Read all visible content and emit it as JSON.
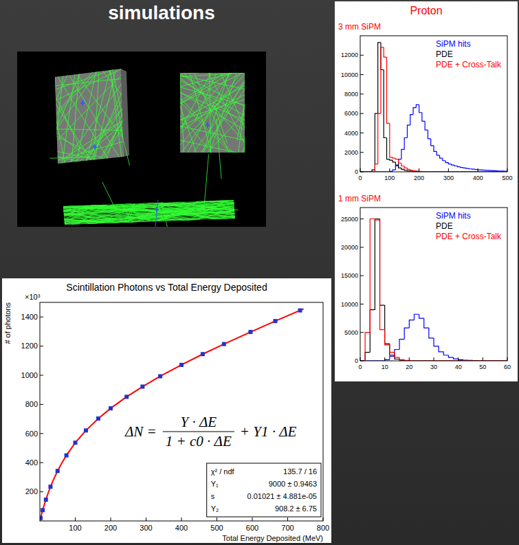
{
  "header": {
    "title": "simulations"
  },
  "panel": {
    "title": "Proton"
  },
  "chart_data": [
    {
      "type": "histogram",
      "title": "3 mm SiPM",
      "bins": [
        0,
        10,
        20,
        30,
        40,
        50,
        60,
        70,
        80,
        90,
        100,
        110,
        120,
        130,
        140,
        150,
        160,
        170,
        180,
        190,
        200,
        210,
        220,
        230,
        240,
        250,
        260,
        270,
        280,
        290,
        300,
        310,
        320,
        330,
        340,
        350,
        360,
        370,
        380,
        390,
        400,
        410,
        420,
        430,
        440,
        450,
        460,
        470,
        480,
        490,
        500
      ],
      "series": [
        {
          "name": "SiPM hits",
          "color": "#0000ff",
          "values": [
            0,
            0,
            0,
            0,
            0,
            0,
            0,
            0,
            0,
            0,
            50,
            200,
            600,
            1300,
            2300,
            3500,
            4800,
            5900,
            6600,
            6900,
            6100,
            5200,
            4300,
            3400,
            2700,
            2100,
            1700,
            1400,
            1150,
            950,
            800,
            700,
            600,
            520,
            450,
            400,
            350,
            300,
            270,
            240,
            210,
            190,
            170,
            150,
            130,
            120,
            100,
            90,
            80,
            70
          ]
        },
        {
          "name": "PDE",
          "color": "#000000",
          "values": [
            0,
            0,
            0,
            0,
            200,
            6000,
            13300,
            10500,
            3500,
            1300,
            1200,
            1000,
            700,
            400,
            250,
            150,
            100,
            80,
            60,
            40,
            30,
            20,
            10,
            0,
            0,
            0,
            0,
            0,
            0,
            0,
            0,
            0,
            0,
            0,
            0,
            0,
            0,
            0,
            0,
            0,
            0,
            0,
            0,
            0,
            0,
            0,
            0,
            0,
            0,
            0
          ]
        },
        {
          "name": "PDE + Cross-Talk",
          "color": "#ff0000",
          "values": [
            0,
            0,
            0,
            0,
            0,
            800,
            6000,
            12800,
            11800,
            5000,
            1500,
            1400,
            1300,
            900,
            600,
            400,
            250,
            150,
            100,
            70,
            50,
            30,
            20,
            10,
            0,
            0,
            0,
            0,
            0,
            0,
            0,
            0,
            0,
            0,
            0,
            0,
            0,
            0,
            0,
            0,
            0,
            0,
            0,
            0,
            0,
            0,
            0,
            0,
            0,
            0
          ]
        }
      ],
      "xlim": [
        0,
        500
      ],
      "ylim": [
        0,
        14000
      ],
      "xticks": [
        0,
        100,
        200,
        300,
        400,
        500
      ],
      "yticks": [
        0,
        2000,
        4000,
        6000,
        8000,
        10000,
        12000
      ],
      "legend": "upper right"
    },
    {
      "type": "histogram",
      "title": "1 mm SiPM",
      "bins": [
        0,
        2,
        4,
        6,
        8,
        10,
        12,
        14,
        16,
        18,
        20,
        22,
        24,
        26,
        28,
        30,
        32,
        34,
        36,
        38,
        40,
        42,
        44,
        46,
        48,
        50,
        52,
        54,
        56,
        58,
        60
      ],
      "series": [
        {
          "name": "SiPM hits",
          "color": "#0000ff",
          "values": [
            0,
            0,
            0,
            0,
            0,
            200,
            800,
            2000,
            3800,
            5800,
            7200,
            8200,
            7500,
            5800,
            4000,
            2600,
            1600,
            1000,
            600,
            350,
            200,
            120,
            70,
            40,
            20,
            10,
            5,
            0,
            0,
            0
          ]
        },
        {
          "name": "PDE",
          "color": "#000000",
          "values": [
            0,
            1500,
            9000,
            25000,
            9800,
            3000,
            1000,
            300,
            100,
            30,
            0,
            0,
            0,
            0,
            0,
            0,
            0,
            0,
            0,
            0,
            0,
            0,
            0,
            0,
            0,
            0,
            0,
            0,
            0,
            0
          ]
        },
        {
          "name": "PDE + Cross-Talk",
          "color": "#ff0000",
          "values": [
            0,
            5000,
            25000,
            24800,
            5500,
            2800,
            1500,
            600,
            200,
            80,
            20,
            0,
            0,
            0,
            0,
            0,
            0,
            0,
            0,
            0,
            0,
            0,
            0,
            0,
            0,
            0,
            0,
            0,
            0,
            0
          ]
        }
      ],
      "xlim": [
        0,
        60
      ],
      "ylim": [
        0,
        27000
      ],
      "xticks": [
        0,
        10,
        20,
        30,
        40,
        50,
        60
      ],
      "yticks": [
        0,
        5000,
        10000,
        15000,
        20000,
        25000
      ],
      "legend": "upper right"
    },
    {
      "type": "scatter",
      "title": "Scintillation Photons vs Total Energy Deposited",
      "xlabel": "Total Energy Deposited (MeV)",
      "ylabel": "# of photons",
      "xlim": [
        0,
        800
      ],
      "ylim": [
        0,
        1500000
      ],
      "xticks": [
        100,
        200,
        300,
        400,
        500,
        600,
        700,
        800
      ],
      "yticks": [
        {
          "value": 200000,
          "label": "200"
        },
        {
          "value": 400000,
          "label": "400"
        },
        {
          "value": 600000,
          "label": "600"
        },
        {
          "value": 800000,
          "label": "800"
        },
        {
          "value": 1000000,
          "label": "1000"
        },
        {
          "value": 1200000,
          "label": "1200"
        },
        {
          "value": 1400000,
          "label": "1400"
        }
      ],
      "series": [
        {
          "type": "scatter",
          "color": "#2233cc",
          "marker": "square",
          "x": [
            2,
            8,
            17,
            30,
            50,
            75,
            100,
            130,
            165,
            200,
            245,
            290,
            340,
            400,
            460,
            520,
            595,
            665,
            735
          ],
          "values": [
            20000,
            74000,
            146000,
            235000,
            343000,
            450000,
            537000,
            621000,
            703000,
            773000,
            852000,
            922000,
            993000,
            1071000,
            1145000,
            1214000,
            1297000,
            1372000,
            1445000
          ]
        },
        {
          "type": "line",
          "color": "#ff0000",
          "line_style": "solid",
          "x": [
            0,
            1,
            2,
            4,
            8,
            12,
            17,
            23,
            30,
            40,
            50,
            62,
            75,
            100,
            130,
            165,
            200,
            245,
            290,
            340,
            400,
            460,
            520,
            595,
            665,
            745
          ],
          "values": [
            0,
            9800,
            20000,
            38200,
            74000,
            107100,
            146000,
            188500,
            235000,
            291900,
            343000,
            398000,
            450000,
            537000,
            621000,
            703000,
            773000,
            852000,
            922000,
            993000,
            1071000,
            1145000,
            1214000,
            1297000,
            1372000,
            1456000
          ]
        }
      ],
      "annotations": {
        "multiplier": "×10³",
        "formula": {
          "lhs": "ΔN =",
          "numerator": "Y · ΔE",
          "denominator": "1 + c0 · ΔE",
          "rest": "+ Y1 · ΔE"
        },
        "stats": [
          {
            "label": "χ² / ndf",
            "value": "135.7 / 16"
          },
          {
            "label": "Y₁",
            "value": "9000 ± 0.9463"
          },
          {
            "label": "s",
            "value": "0.01021 ± 4.881e-05"
          },
          {
            "label": "Y₂",
            "value": "908.2 ± 6.75"
          }
        ]
      }
    }
  ]
}
